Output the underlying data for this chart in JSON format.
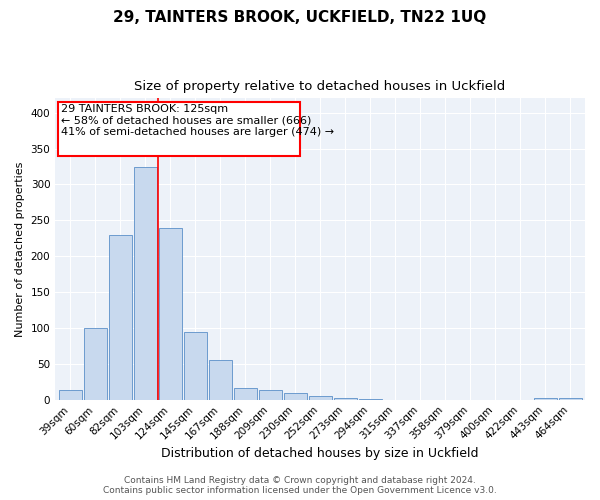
{
  "title1": "29, TAINTERS BROOK, UCKFIELD, TN22 1UQ",
  "title2": "Size of property relative to detached houses in Uckfield",
  "xlabel": "Distribution of detached houses by size in Uckfield",
  "ylabel": "Number of detached properties",
  "bar_labels": [
    "39sqm",
    "60sqm",
    "82sqm",
    "103sqm",
    "124sqm",
    "145sqm",
    "167sqm",
    "188sqm",
    "209sqm",
    "230sqm",
    "252sqm",
    "273sqm",
    "294sqm",
    "315sqm",
    "337sqm",
    "358sqm",
    "379sqm",
    "400sqm",
    "422sqm",
    "443sqm",
    "464sqm"
  ],
  "bar_values": [
    13,
    100,
    230,
    325,
    240,
    95,
    55,
    16,
    14,
    9,
    5,
    2,
    1,
    0,
    0,
    0,
    0,
    0,
    0,
    2,
    2
  ],
  "bar_color": "#c8d9ee",
  "bar_edge_color": "#5b8fc9",
  "red_line_bar_index": 3.5,
  "annotation_line1": "29 TAINTERS BROOK: 125sqm",
  "annotation_line2": "← 58% of detached houses are smaller (666)",
  "annotation_line3": "41% of semi-detached houses are larger (474) →",
  "ylim": [
    0,
    420
  ],
  "yticks": [
    0,
    50,
    100,
    150,
    200,
    250,
    300,
    350,
    400
  ],
  "footer_line1": "Contains HM Land Registry data © Crown copyright and database right 2024.",
  "footer_line2": "Contains public sector information licensed under the Open Government Licence v3.0.",
  "bg_color": "#edf2f9",
  "grid_color": "#ffffff",
  "title1_fontsize": 11,
  "title2_fontsize": 9.5,
  "xlabel_fontsize": 9,
  "ylabel_fontsize": 8,
  "tick_fontsize": 7.5,
  "annotation_fontsize": 8,
  "footer_fontsize": 6.5
}
